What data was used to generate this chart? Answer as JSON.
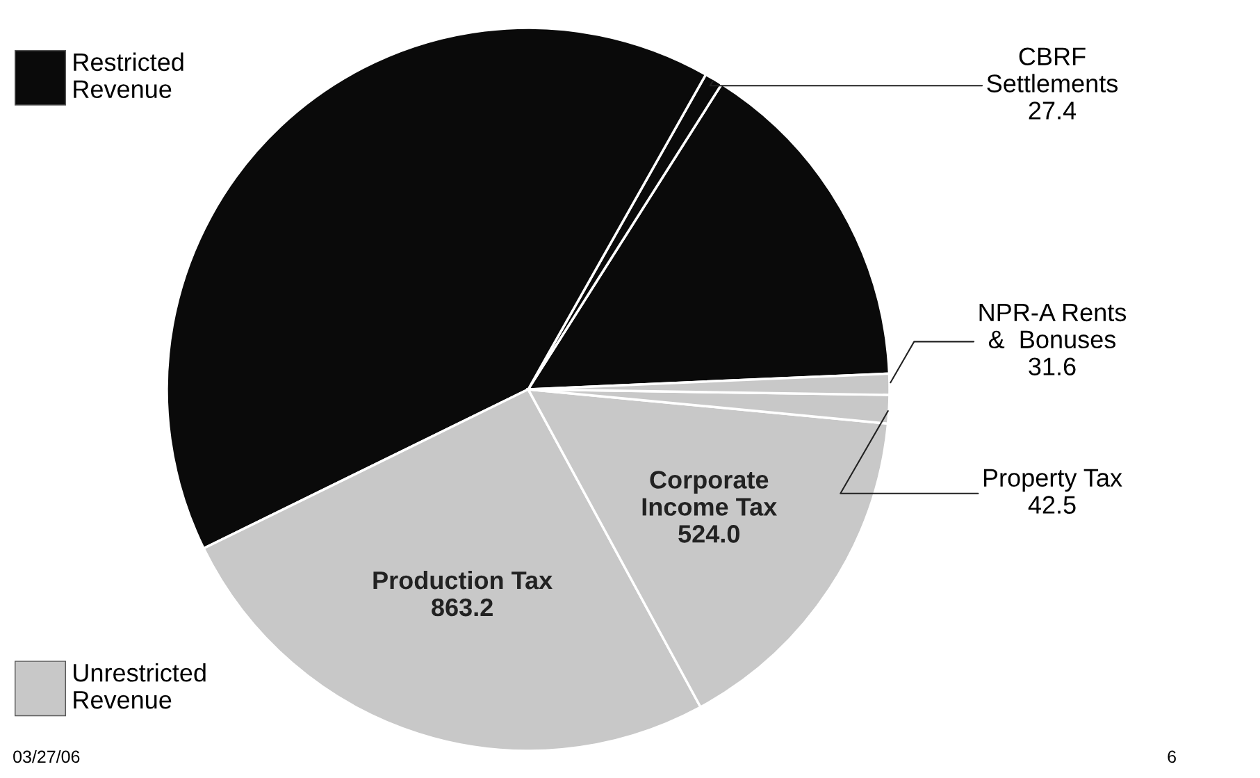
{
  "chart_data": {
    "type": "pie",
    "categories": [
      null,
      "CBRF\nSettlements",
      null,
      "Production Tax",
      "Corporate\nIncome Tax",
      "Property Tax",
      "NPR-A Rents\n&  Bonuses"
    ],
    "values": [
      515,
      27.4,
      1360,
      863.2,
      524.0,
      42.5,
      31.6
    ],
    "colors": [
      "#0a0a0a",
      "#0a0a0a",
      "#0a0a0a",
      "#c8c8c8",
      "#c8c8c8",
      "#c8c8c8",
      "#c8c8c8"
    ],
    "value_labels": [
      null,
      "27.4",
      null,
      "863.2",
      "524.0",
      "42.5",
      "31.6"
    ],
    "annotations": [
      "Restricted\nRevenue",
      "Unrestricted\nRevenue",
      "03/27/06",
      "6"
    ]
  }
}
